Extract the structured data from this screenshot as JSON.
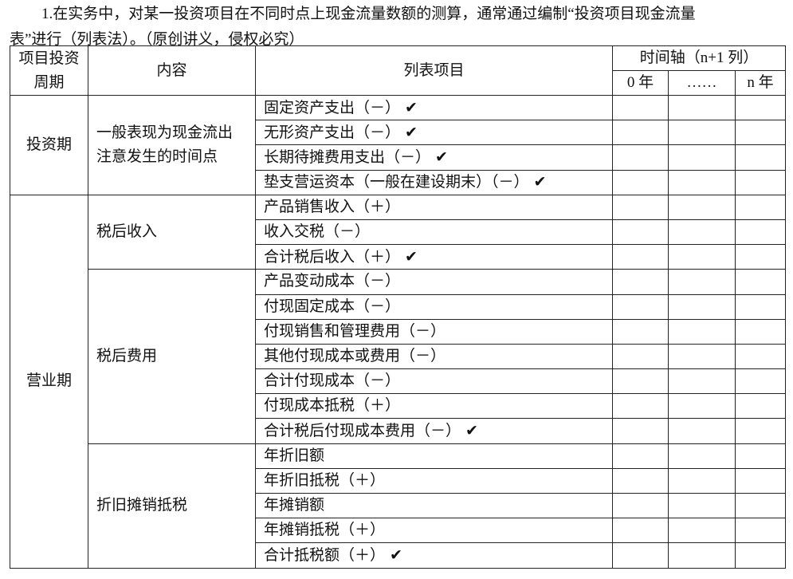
{
  "paragraph": {
    "line1": "1.在实务中，对某一投资项目在不同时点上现金流量数额的测算，通常通过编制“投资项目现金流量",
    "line2": "表”进行（列表法）。（原创讲义，侵权必究）"
  },
  "table": {
    "headers": {
      "period": "项目投资周期",
      "content": "内容",
      "items": "列表项目",
      "timeline": "时间轴（n+1 列）",
      "year0": "0 年",
      "ellipsis": "……",
      "yearn": "n 年"
    },
    "check_mark": "✔",
    "investment": {
      "period": "投资期",
      "content": "一般表现为现金流出注意发生的时间点",
      "items": [
        {
          "label": "固定资产支出（－）",
          "checked": true
        },
        {
          "label": "无形资产支出（－）",
          "checked": true
        },
        {
          "label": "长期待摊费用支出（－）",
          "checked": true
        },
        {
          "label": "垫支营运资本（一般在建设期末）（－）",
          "checked": true
        }
      ]
    },
    "operating": {
      "period": "营业期",
      "groups": [
        {
          "content": "税后收入",
          "items": [
            {
              "label": "产品销售收入（＋）",
              "checked": false
            },
            {
              "label": "收入交税（－）",
              "checked": false
            },
            {
              "label": "合计税后收入（＋）",
              "checked": true
            }
          ]
        },
        {
          "content": "税后费用",
          "items": [
            {
              "label": "产品变动成本（－）",
              "checked": false
            },
            {
              "label": "付现固定成本（－）",
              "checked": false
            },
            {
              "label": "付现销售和管理费用（－）",
              "checked": false
            },
            {
              "label": "其他付现成本或费用（－）",
              "checked": false
            },
            {
              "label": "合计付现成本（－）",
              "checked": false
            },
            {
              "label": "付现成本抵税（＋）",
              "checked": false
            },
            {
              "label": "合计税后付现成本费用（－）",
              "checked": true
            }
          ]
        },
        {
          "content": "折旧摊销抵税",
          "items": [
            {
              "label": "年折旧额",
              "checked": false
            },
            {
              "label": "年折旧抵税（＋）",
              "checked": false
            },
            {
              "label": "年摊销额",
              "checked": false
            },
            {
              "label": "年摊销抵税（＋）",
              "checked": false
            },
            {
              "label": "合计抵税额（＋）",
              "checked": true
            }
          ]
        }
      ]
    }
  }
}
